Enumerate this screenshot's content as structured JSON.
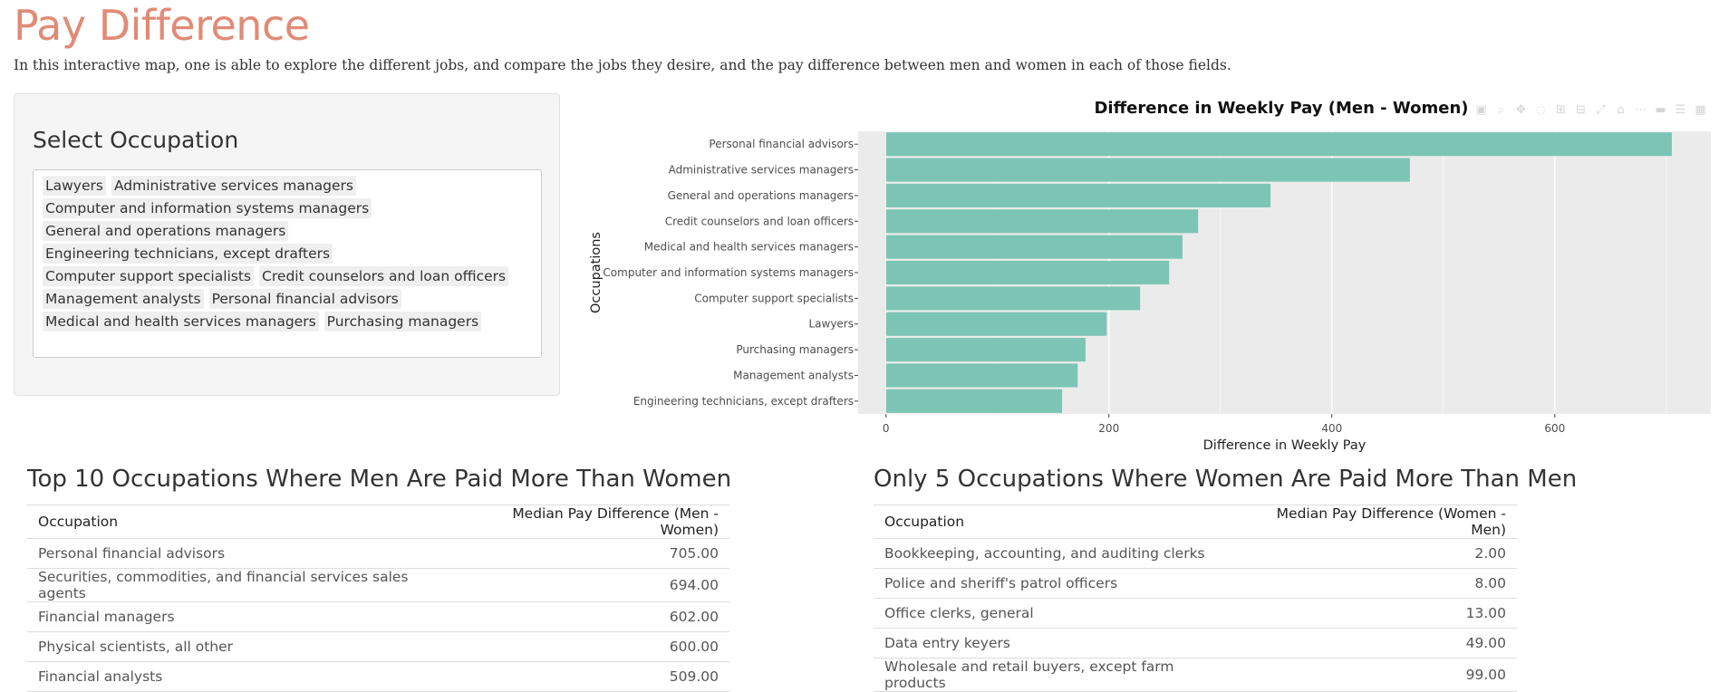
{
  "page": {
    "title": "Pay Difference",
    "intro": "In this interactive map, one is able to explore the different jobs, and compare the jobs they desire, and the pay difference between men and women in each of those fields."
  },
  "select": {
    "label": "Select Occupation",
    "options": [
      "Lawyers",
      "Administrative services managers",
      "Computer and information systems managers",
      "General and operations managers",
      "Engineering technicians, except drafters",
      "Computer support specialists",
      "Credit counselors and loan officers",
      "Management analysts",
      "Personal financial advisors",
      "Medical and health services managers",
      "Purchasing managers"
    ]
  },
  "colors": {
    "bar": "#7cc5b5",
    "plot_bg": "#ebebeb",
    "title_accent": "#e08b77"
  },
  "modebar_icons": [
    "camera-icon",
    "zoom-icon",
    "pan-icon",
    "lasso-icon",
    "zoom-in-icon",
    "zoom-out-icon",
    "autoscale-icon",
    "reset-icon",
    "spike-icon",
    "hover-closest-icon",
    "hover-compare-icon",
    "plotly-logo-icon"
  ],
  "chart_data": {
    "type": "bar",
    "orientation": "horizontal",
    "title": "Difference in Weekly Pay (Men - Women)",
    "xlabel": "Difference in Weekly Pay",
    "ylabel": "Occupations",
    "xlim": [
      -25,
      740
    ],
    "xticks": [
      0,
      200,
      400,
      600
    ],
    "grid": true,
    "categories": [
      "Personal financial advisors",
      "Administrative services managers",
      "General and operations managers",
      "Credit counselors and loan officers",
      "Medical and health services managers",
      "Computer and information systems managers",
      "Computer support specialists",
      "Lawyers",
      "Purchasing managers",
      "Management analysts",
      "Engineering technicians, except drafters"
    ],
    "values": [
      705,
      470,
      345,
      280,
      266,
      254,
      228,
      198,
      179,
      172,
      158
    ]
  },
  "men_table": {
    "title": "Top 10 Occupations Where Men Are Paid More Than Women",
    "col_occupation": "Occupation",
    "col_diff": "Median Pay Difference (Men - Women)",
    "rows": [
      {
        "occupation": "Personal financial advisors",
        "diff": "705.00"
      },
      {
        "occupation": "Securities, commodities, and financial services sales agents",
        "diff": "694.00"
      },
      {
        "occupation": "Financial managers",
        "diff": "602.00"
      },
      {
        "occupation": "Physical scientists, all other",
        "diff": "600.00"
      },
      {
        "occupation": "Financial analysts",
        "diff": "509.00"
      }
    ]
  },
  "women_table": {
    "title": "Only 5 Occupations Where Women Are Paid More Than Men",
    "col_occupation": "Occupation",
    "col_diff": "Median Pay Difference (Women - Men)",
    "rows": [
      {
        "occupation": "Bookkeeping, accounting, and auditing clerks",
        "diff": "2.00"
      },
      {
        "occupation": "Police and sheriff's patrol officers",
        "diff": "8.00"
      },
      {
        "occupation": "Office clerks, general",
        "diff": "13.00"
      },
      {
        "occupation": "Data entry keyers",
        "diff": "49.00"
      },
      {
        "occupation": "Wholesale and retail buyers, except farm products",
        "diff": "99.00"
      }
    ]
  }
}
